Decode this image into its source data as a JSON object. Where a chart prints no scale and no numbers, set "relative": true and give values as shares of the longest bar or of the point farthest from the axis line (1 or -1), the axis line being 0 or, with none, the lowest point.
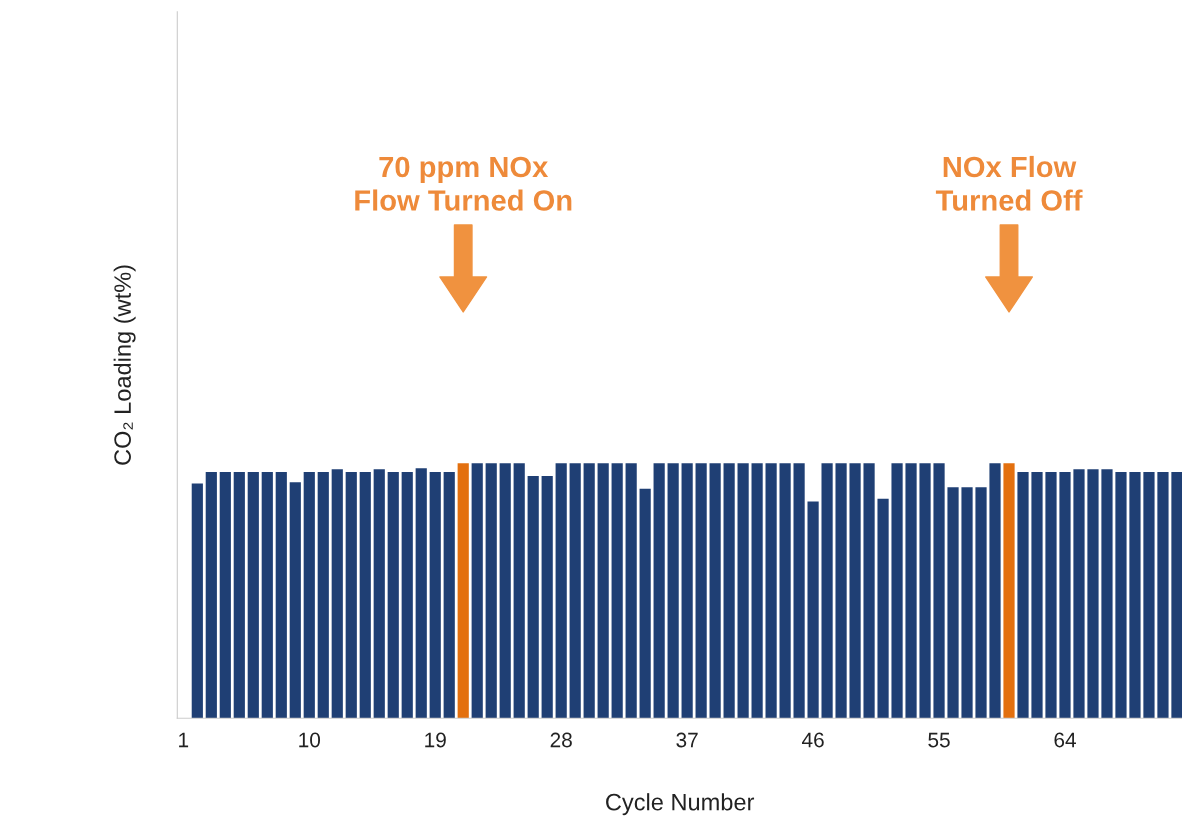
{
  "chart_data": {
    "type": "bar",
    "relative": true,
    "xlabel": "Cycle Number",
    "ylabel": "CO₂ Loading (wt%)",
    "categories": [
      "1",
      null,
      null,
      null,
      null,
      null,
      null,
      null,
      null,
      "10",
      null,
      null,
      null,
      null,
      null,
      null,
      null,
      null,
      "19",
      null,
      null,
      null,
      null,
      null,
      null,
      null,
      null,
      "28",
      null,
      null,
      null,
      null,
      null,
      null,
      null,
      null,
      "37",
      null,
      null,
      null,
      null,
      null,
      null,
      null,
      null,
      "46",
      null,
      null,
      null,
      null,
      null,
      null,
      null,
      null,
      "55",
      null,
      null,
      null,
      null,
      null,
      null,
      null,
      null,
      "64",
      null,
      null,
      null,
      null,
      null,
      null,
      null,
      null
    ],
    "values": [
      null,
      0.92,
      0.965,
      0.965,
      0.965,
      0.965,
      0.965,
      0.965,
      0.925,
      0.965,
      0.965,
      0.976,
      0.965,
      0.965,
      0.976,
      0.965,
      0.965,
      0.98,
      0.965,
      0.965,
      1,
      1,
      1,
      1,
      1,
      0.95,
      0.95,
      1,
      1,
      1,
      1,
      1,
      1,
      0.9,
      1,
      1,
      1,
      1,
      1,
      1,
      1,
      1,
      1,
      1,
      1,
      0.85,
      1,
      1,
      1,
      1,
      0.86,
      1,
      1,
      1,
      1,
      0.906,
      0.906,
      0.906,
      1,
      1,
      0.965,
      0.965,
      0.965,
      0.965,
      0.976,
      0.976,
      0.976,
      0.965,
      0.965,
      0.965,
      0.965,
      0.965
    ],
    "colors": [
      "#1f3f74",
      "#1f3f74",
      "#1f3f74",
      "#1f3f74",
      "#1f3f74",
      "#1f3f74",
      "#1f3f74",
      "#1f3f74",
      "#1f3f74",
      "#1f3f74",
      "#1f3f74",
      "#1f3f74",
      "#1f3f74",
      "#1f3f74",
      "#1f3f74",
      "#1f3f74",
      "#1f3f74",
      "#1f3f74",
      "#1f3f74",
      "#1f3f74",
      "#e3700f",
      "#1f3f74",
      "#1f3f74",
      "#1f3f74",
      "#1f3f74",
      "#1f3f74",
      "#1f3f74",
      "#1f3f74",
      "#1f3f74",
      "#1f3f74",
      "#1f3f74",
      "#1f3f74",
      "#1f3f74",
      "#1f3f74",
      "#1f3f74",
      "#1f3f74",
      "#1f3f74",
      "#1f3f74",
      "#1f3f74",
      "#1f3f74",
      "#1f3f74",
      "#1f3f74",
      "#1f3f74",
      "#1f3f74",
      "#1f3f74",
      "#1f3f74",
      "#1f3f74",
      "#1f3f74",
      "#1f3f74",
      "#1f3f74",
      "#1f3f74",
      "#1f3f74",
      "#1f3f74",
      "#1f3f74",
      "#1f3f74",
      "#1f3f74",
      "#1f3f74",
      "#1f3f74",
      "#1f3f74",
      "#e3700f",
      "#1f3f74",
      "#1f3f74",
      "#1f3f74",
      "#1f3f74",
      "#1f3f74",
      "#1f3f74",
      "#1f3f74",
      "#1f3f74",
      "#1f3f74",
      "#1f3f74",
      "#1f3f74",
      "#1f3f74"
    ],
    "annotations": [
      "70 ppm NOx\nFlow Turned On",
      "NOx Flow\nTurned Off"
    ],
    "grid": false,
    "legend": false
  }
}
